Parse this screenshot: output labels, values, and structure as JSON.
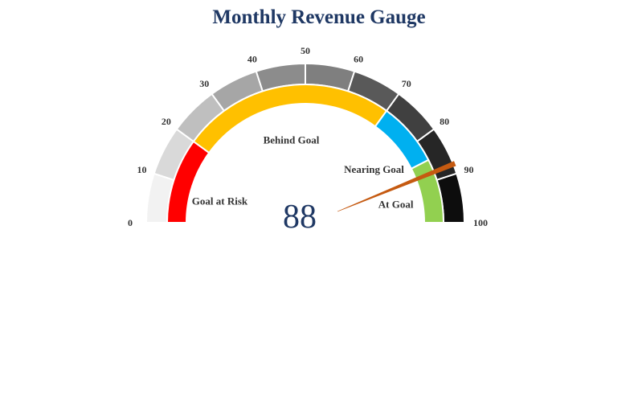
{
  "chart_data": {
    "type": "gauge",
    "title": "Monthly Revenue Gauge",
    "min": 0,
    "max": 100,
    "value": 88,
    "value_color": "#1f3864",
    "needle_color": "#c55a11",
    "tick_labels": [
      "0",
      "10",
      "20",
      "30",
      "40",
      "50",
      "60",
      "70",
      "80",
      "90",
      "100"
    ],
    "scale_colors": [
      "#f2f2f2",
      "#d9d9d9",
      "#bfbfbf",
      "#a6a6a6",
      "#8c8c8c",
      "#7f7f7f",
      "#595959",
      "#404040",
      "#262626",
      "#0d0d0d"
    ],
    "zones": [
      {
        "label": "Goal at Risk",
        "from": 0,
        "to": 20,
        "color": "#ff0000"
      },
      {
        "label": "Behind Goal",
        "from": 20,
        "to": 70,
        "color": "#ffc000"
      },
      {
        "label": "Nearing Goal",
        "from": 70,
        "to": 85,
        "color": "#00b0f0"
      },
      {
        "label": "At Goal",
        "from": 85,
        "to": 100,
        "color": "#92d050"
      }
    ]
  }
}
